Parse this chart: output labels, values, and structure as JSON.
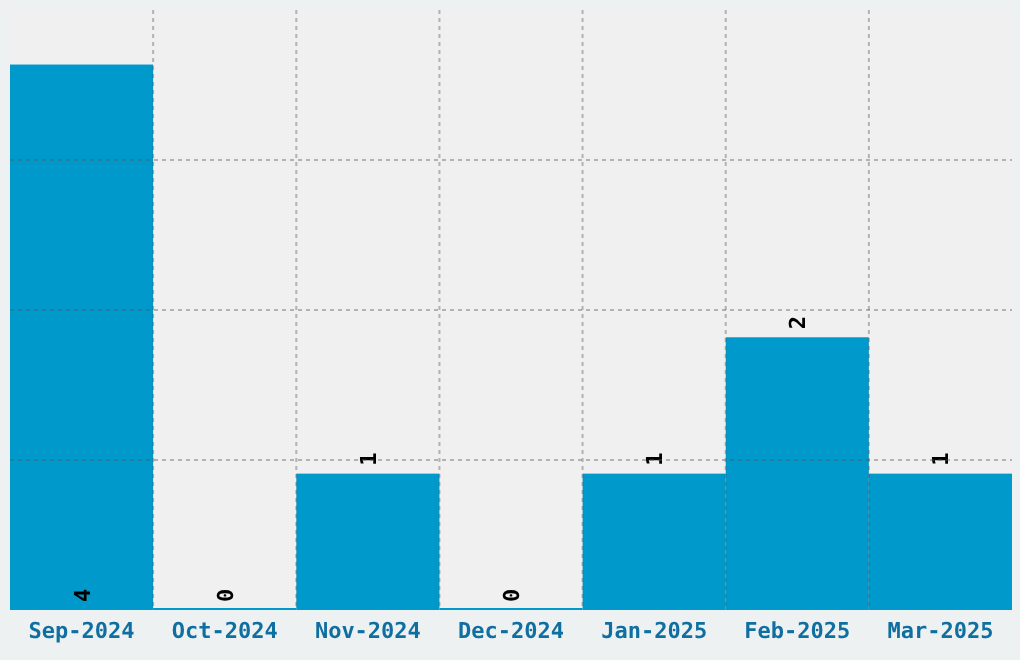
{
  "chart_data": {
    "type": "bar",
    "categories": [
      "Sep-2024",
      "Oct-2024",
      "Nov-2024",
      "Dec-2024",
      "Jan-2025",
      "Feb-2025",
      "Mar-2025"
    ],
    "values": [
      4,
      0,
      1,
      0,
      1,
      2,
      1
    ],
    "color": "#0099cc",
    "ylim": [
      0,
      4.4
    ],
    "yticks": [
      {
        "value": 1.1,
        "label": null
      },
      {
        "value": 2.2,
        "label": null
      },
      {
        "value": 3.3,
        "label": null
      }
    ],
    "grid": true,
    "data_labels": true,
    "tick_labels": "x"
  }
}
